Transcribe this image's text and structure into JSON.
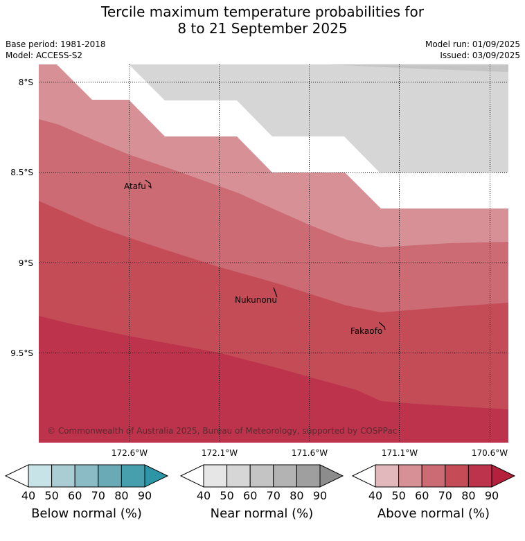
{
  "title": {
    "line1": "Tercile maximum temperature probabilities for",
    "line2": "8 to 21 September 2025"
  },
  "info": {
    "base_period": "Base period: 1981-2018",
    "model": "Model: ACCESS-S2",
    "model_run": "Model run: 01/09/2025",
    "issued": "Issued: 03/09/2025"
  },
  "map": {
    "lat_labels": [
      "8°S",
      "8.5°S",
      "9°S",
      "9.5°S"
    ],
    "lon_labels": [
      "172.6°W",
      "172.1°W",
      "171.6°W",
      "171.1°W",
      "170.6°W"
    ],
    "places": [
      "Atafu",
      "Nukunonu",
      "Fakaofo"
    ],
    "copyright": "© Commonwealth of Australia 2025, Bureau of Meteorology, supported by COSPPac",
    "zones": {
      "near_normal_50": "#d6d6d6",
      "near_normal_60": "#c4c4c4",
      "above_normal_50": "#d69096",
      "above_normal_60": "#cc6b73",
      "above_normal_70": "#c34c57",
      "above_normal_80": "#bc334b"
    }
  },
  "legends": [
    {
      "label": "Below normal (%)",
      "ticks": [
        "40",
        "50",
        "60",
        "70",
        "80",
        "90"
      ],
      "colors": [
        "#c8e3e8",
        "#a9cdd3",
        "#8bbcc5",
        "#6aaab6",
        "#479fae",
        "#2c96a6"
      ]
    },
    {
      "label": "Near normal (%)",
      "ticks": [
        "40",
        "50",
        "60",
        "70",
        "80",
        "90"
      ],
      "colors": [
        "#e6e6e6",
        "#d6d6d6",
        "#c4c4c4",
        "#b3b3b3",
        "#9f9f9f",
        "#8c8c8c"
      ]
    },
    {
      "label": "Above normal (%)",
      "ticks": [
        "40",
        "50",
        "60",
        "70",
        "80",
        "90"
      ],
      "colors": [
        "#e3b8bd",
        "#d69096",
        "#cc6b73",
        "#c34c57",
        "#bc334b",
        "#b5203c"
      ]
    }
  ]
}
